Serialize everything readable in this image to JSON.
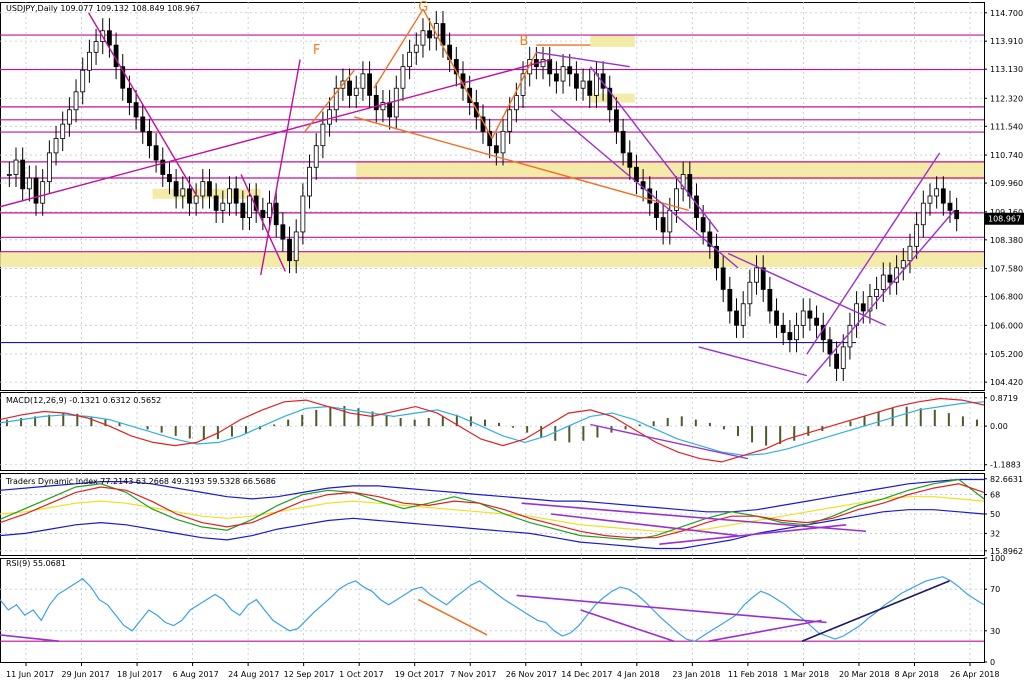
{
  "chart_data": {
    "type": "candlestick",
    "instrument_header": "USDJPY,Daily  109.077 109.132 108.849 108.967",
    "price_panel": {
      "ylim": [
        104.2,
        115.0
      ],
      "y_ticks": [
        "114.700",
        "113.910",
        "113.130",
        "112.320",
        "111.540",
        "110.740",
        "109.960",
        "109.160",
        "108.380",
        "107.580",
        "106.800",
        "106.000",
        "105.200",
        "104.420"
      ],
      "current_price_label": "108.967",
      "current_price": 108.967,
      "horizontal_levels_magenta": [
        114.08,
        113.12,
        112.08,
        111.72,
        111.38,
        110.55,
        110.1,
        109.13,
        108.45,
        108.05
      ],
      "horizontal_level_blue": 105.52,
      "highlight_zones": [
        {
          "x0": 0,
          "x1": 1,
          "y0": 107.62,
          "y1": 108.05
        },
        {
          "x0": 0.362,
          "x1": 1,
          "y0": 110.05,
          "y1": 110.58
        },
        {
          "x0": 0.155,
          "x1": 0.265,
          "y0": 109.52,
          "y1": 109.8
        },
        {
          "x0": 0.6,
          "x1": 0.645,
          "y0": 113.75,
          "y1": 114.08
        },
        {
          "x0": 0.6,
          "x1": 0.645,
          "y0": 112.2,
          "y1": 112.45
        }
      ],
      "pattern_labels": [
        "F",
        "G",
        "B"
      ],
      "candle_closes": [
        110.2,
        110.6,
        109.8,
        110.1,
        109.4,
        110.0,
        110.8,
        111.2,
        111.6,
        112.0,
        112.5,
        113.1,
        113.6,
        113.9,
        114.2,
        113.8,
        113.2,
        112.6,
        112.2,
        111.8,
        111.4,
        111.0,
        110.6,
        110.2,
        110.0,
        109.6,
        109.8,
        109.4,
        109.6,
        110.0,
        109.6,
        109.2,
        109.4,
        109.8,
        109.4,
        109.0,
        109.6,
        109.2,
        109.0,
        109.4,
        108.8,
        108.4,
        107.8,
        108.6,
        109.6,
        110.4,
        111.0,
        111.6,
        112.0,
        112.6,
        112.8,
        112.4,
        112.6,
        113.0,
        112.4,
        112.0,
        112.2,
        111.8,
        112.6,
        113.2,
        113.6,
        113.8,
        114.2,
        114.0,
        114.4,
        113.8,
        113.4,
        113.0,
        112.6,
        112.2,
        111.8,
        111.4,
        111.0,
        110.8,
        111.4,
        112.0,
        112.4,
        113.0,
        113.4,
        113.2,
        113.4,
        113.0,
        112.8,
        113.2,
        113.0,
        112.6,
        112.8,
        112.4,
        113.0,
        112.6,
        112.0,
        111.4,
        110.8,
        110.4,
        110.0,
        109.8,
        109.4,
        109.0,
        108.6,
        109.2,
        109.8,
        110.2,
        109.6,
        109.0,
        108.6,
        108.2,
        107.6,
        107.0,
        106.4,
        106.0,
        106.6,
        107.2,
        107.6,
        107.0,
        106.4,
        106.0,
        105.8,
        105.6,
        106.0,
        106.4,
        106.2,
        106.0,
        105.6,
        105.2,
        104.8,
        105.4,
        106.0,
        106.6,
        106.4,
        106.8,
        107.0,
        107.4,
        107.2,
        107.6,
        107.8,
        108.2,
        108.8,
        109.4,
        109.6,
        109.8,
        109.4,
        109.2,
        108.967
      ],
      "trend_lines": [
        {
          "color": "#c0109c",
          "x0": 0.0,
          "y0": 109.3,
          "x1": 0.56,
          "y1": 113.4
        },
        {
          "color": "#c0109c",
          "x0": 0.09,
          "y0": 114.7,
          "x1": 0.2,
          "y1": 109.6
        },
        {
          "color": "#c0109c",
          "x0": 0.245,
          "y0": 110.2,
          "x1": 0.29,
          "y1": 107.5
        },
        {
          "color": "#c0109c",
          "x0": 0.265,
          "y0": 107.4,
          "x1": 0.305,
          "y1": 113.4
        },
        {
          "color": "#f07020",
          "x0": 0.31,
          "y0": 111.4,
          "x1": 0.36,
          "y1": 113.1
        },
        {
          "color": "#f07020",
          "x0": 0.36,
          "y0": 111.8,
          "x1": 0.7,
          "y1": 109.2
        },
        {
          "color": "#f07020",
          "x0": 0.38,
          "y0": 112.6,
          "x1": 0.43,
          "y1": 114.8
        },
        {
          "color": "#f07020",
          "x0": 0.43,
          "y0": 114.8,
          "x1": 0.5,
          "y1": 111.2
        },
        {
          "color": "#f07020",
          "x0": 0.5,
          "y0": 111.2,
          "x1": 0.545,
          "y1": 113.6
        },
        {
          "color": "#f07020",
          "x0": 0.545,
          "y0": 113.8,
          "x1": 0.6,
          "y1": 113.8
        },
        {
          "color": "#9b30d0",
          "x0": 0.545,
          "y0": 113.6,
          "x1": 0.64,
          "y1": 113.2
        },
        {
          "color": "#9b30d0",
          "x0": 0.6,
          "y0": 113.2,
          "x1": 0.73,
          "y1": 108.6
        },
        {
          "color": "#9b30d0",
          "x0": 0.56,
          "y0": 112.0,
          "x1": 0.75,
          "y1": 107.6
        },
        {
          "color": "#9b30d0",
          "x0": 0.71,
          "y0": 105.4,
          "x1": 0.82,
          "y1": 104.6
        },
        {
          "color": "#9b30d0",
          "x0": 0.74,
          "y0": 108.0,
          "x1": 0.9,
          "y1": 106.0
        },
        {
          "color": "#9b30d0",
          "x0": 0.82,
          "y0": 104.4,
          "x1": 0.97,
          "y1": 109.2
        },
        {
          "color": "#9b30d0",
          "x0": 0.82,
          "y0": 105.2,
          "x1": 0.955,
          "y1": 110.8
        }
      ]
    },
    "macd_panel": {
      "label": "MACD(12,26,9) -0.1321 0.6312 0.5652",
      "y_ticks": [
        "0.8719",
        "0.00",
        "-1.1883"
      ],
      "ylim": [
        -1.35,
        1.05
      ],
      "histogram": [
        0.2,
        0.25,
        0.3,
        0.35,
        0.4,
        0.38,
        0.3,
        0.2,
        0.1,
        0.0,
        -0.1,
        -0.2,
        -0.3,
        -0.38,
        -0.42,
        -0.4,
        -0.32,
        -0.22,
        -0.1,
        0.05,
        0.2,
        0.35,
        0.5,
        0.6,
        0.62,
        0.55,
        0.45,
        0.35,
        0.25,
        0.2,
        0.25,
        0.3,
        0.35,
        0.3,
        0.2,
        0.1,
        -0.05,
        -0.2,
        -0.35,
        -0.45,
        -0.5,
        -0.45,
        -0.35,
        -0.2,
        -0.1,
        0.05,
        0.15,
        0.25,
        0.3,
        0.2,
        0.1,
        -0.1,
        -0.3,
        -0.5,
        -0.6,
        -0.55,
        -0.45,
        -0.3,
        -0.15,
        0.0,
        0.15,
        0.3,
        0.45,
        0.55,
        0.6,
        0.55,
        0.5,
        0.4,
        0.3,
        0.2
      ],
      "signal_line": [
        0.1,
        0.2,
        0.3,
        0.35,
        0.3,
        0.2,
        0.0,
        -0.2,
        -0.4,
        -0.55,
        -0.5,
        -0.3,
        0.0,
        0.3,
        0.55,
        0.6,
        0.5,
        0.4,
        0.3,
        0.4,
        0.5,
        0.3,
        0.0,
        -0.3,
        -0.5,
        -0.3,
        0.0,
        0.3,
        0.4,
        0.2,
        -0.1,
        -0.4,
        -0.6,
        -0.8,
        -0.9,
        -0.85,
        -0.7,
        -0.5,
        -0.3,
        -0.1,
        0.1,
        0.3,
        0.5,
        0.6,
        0.7,
        0.75
      ],
      "macd_line": [
        0.2,
        0.35,
        0.45,
        0.4,
        0.25,
        0.0,
        -0.3,
        -0.5,
        -0.6,
        -0.5,
        -0.2,
        0.2,
        0.5,
        0.75,
        0.8,
        0.6,
        0.4,
        0.3,
        0.45,
        0.6,
        0.4,
        0.0,
        -0.4,
        -0.6,
        -0.4,
        0.0,
        0.4,
        0.5,
        0.3,
        -0.1,
        -0.5,
        -0.8,
        -1.0,
        -1.1,
        -0.9,
        -0.7,
        -0.4,
        -0.2,
        0.0,
        0.2,
        0.4,
        0.6,
        0.75,
        0.85,
        0.8,
        0.65
      ]
    },
    "tdi_panel": {
      "label": "Traders Dynamic Index 77.2143 63.2668 49.3193 59.5328 66.5686",
      "y_ticks": [
        "82.6631",
        "68",
        "50",
        "32",
        "15.8962"
      ],
      "ylim": [
        12,
        88
      ],
      "upper_band": [
        72,
        74,
        76,
        78,
        80,
        80,
        78,
        74,
        70,
        66,
        64,
        66,
        70,
        74,
        76,
        76,
        74,
        72,
        70,
        68,
        66,
        64,
        62,
        62,
        60,
        58,
        56,
        54,
        52,
        52,
        54,
        58,
        62,
        66,
        70,
        74,
        78,
        80,
        82,
        82
      ],
      "yellow_line": [
        50,
        52,
        56,
        60,
        62,
        60,
        56,
        52,
        48,
        46,
        48,
        52,
        56,
        60,
        62,
        60,
        58,
        56,
        54,
        52,
        50,
        48,
        44,
        40,
        38,
        36,
        34,
        34,
        36,
        40,
        44,
        48,
        52,
        56,
        60,
        64,
        66,
        66,
        64,
        62
      ],
      "lower_band": [
        30,
        32,
        36,
        40,
        42,
        40,
        36,
        32,
        28,
        26,
        30,
        36,
        40,
        44,
        46,
        44,
        42,
        40,
        38,
        36,
        34,
        32,
        28,
        24,
        22,
        20,
        18,
        18,
        22,
        26,
        32,
        36,
        40,
        44,
        48,
        52,
        54,
        54,
        52,
        50
      ],
      "green_line": [
        45,
        55,
        65,
        75,
        78,
        70,
        55,
        45,
        38,
        35,
        45,
        58,
        68,
        72,
        70,
        62,
        55,
        60,
        66,
        60,
        50,
        42,
        36,
        30,
        28,
        26,
        30,
        38,
        46,
        52,
        48,
        42,
        40,
        48,
        58,
        64,
        72,
        78,
        82,
        64
      ],
      "red_line": [
        42,
        50,
        60,
        70,
        75,
        72,
        62,
        50,
        42,
        38,
        42,
        52,
        62,
        68,
        70,
        66,
        60,
        58,
        62,
        60,
        54,
        46,
        40,
        34,
        30,
        28,
        28,
        34,
        42,
        48,
        48,
        44,
        42,
        46,
        54,
        60,
        68,
        74,
        78,
        70
      ],
      "purple_trend_lines": [
        {
          "x0": 0.53,
          "y0": 60,
          "x1": 0.88,
          "y1": 34
        },
        {
          "x0": 0.67,
          "y0": 22,
          "x1": 0.86,
          "y1": 40
        },
        {
          "x0": 0.56,
          "y0": 50,
          "x1": 0.75,
          "y1": 30
        }
      ]
    },
    "rsi_panel": {
      "label": "RSI(9) 55.0681",
      "y_ticks": [
        "100",
        "70",
        "30",
        "0"
      ],
      "ylim": [
        0,
        100
      ],
      "values": [
        60,
        50,
        55,
        45,
        50,
        40,
        55,
        65,
        70,
        75,
        80,
        72,
        60,
        55,
        45,
        35,
        30,
        40,
        50,
        45,
        38,
        35,
        40,
        50,
        55,
        60,
        65,
        60,
        50,
        45,
        55,
        60,
        50,
        40,
        35,
        30,
        32,
        40,
        48,
        55,
        62,
        70,
        75,
        78,
        72,
        68,
        60,
        55,
        60,
        65,
        70,
        72,
        65,
        60,
        55,
        62,
        68,
        74,
        78,
        72,
        66,
        60,
        55,
        50,
        45,
        40,
        38,
        30,
        25,
        28,
        35,
        45,
        55,
        62,
        68,
        72,
        70,
        65,
        58,
        50,
        42,
        35,
        28,
        22,
        20,
        25,
        30,
        35,
        40,
        45,
        55,
        62,
        68,
        65,
        60,
        55,
        48,
        42,
        35,
        28,
        25,
        22,
        25,
        30,
        35,
        42,
        48,
        55,
        60,
        66,
        70,
        74,
        78,
        80,
        82,
        78,
        72,
        65,
        60,
        55
      ],
      "orange_trend_line": {
        "x0": 0.425,
        "y0": 60,
        "x1": 0.495,
        "y1": 26
      },
      "purple_trend_lines": [
        {
          "x0": 0.525,
          "y0": 64,
          "x1": 0.84,
          "y1": 38
        },
        {
          "x0": 0.59,
          "y0": 50,
          "x1": 0.685,
          "y1": 20
        },
        {
          "x0": 0.72,
          "y0": 20,
          "x1": 0.835,
          "y1": 40
        },
        {
          "x0": 0.0,
          "y0": 26,
          "x1": 0.06,
          "y1": 20
        }
      ],
      "navy_trend_line": {
        "x0": 0.815,
        "y0": 20,
        "x1": 0.965,
        "y1": 78
      },
      "level_20_line": 20
    },
    "x_ticks": [
      "11 Jun 2017",
      "29 Jun 2017",
      "18 Jul 2017",
      "6 Aug 2017",
      "24 Aug 2017",
      "12 Sep 2017",
      "1 Oct 2017",
      "19 Oct 2017",
      "7 Nov 2017",
      "26 Nov 2017",
      "14 Dec 2017",
      "4 Jan 2018",
      "23 Jan 2018",
      "11 Feb 2018",
      "1 Mar 2018",
      "20 Mar 2018",
      "8 Apr 2018",
      "26 Apr 2018"
    ],
    "grid": true,
    "colors": {
      "bull_candle": "#000000",
      "bear_candle": "#000000",
      "magenta_level": "#c0109c",
      "blue_level": "#1a1aa0",
      "zone_fill": "#f3e89a",
      "grid": "#b8c8dc",
      "macd_hist": "#4a5a2a",
      "macd_line": "#e02020",
      "macd_signal": "#30b0e0",
      "tdi_band": "#1a1ad0",
      "tdi_yellow": "#f0e020",
      "tdi_green": "#20a020",
      "tdi_red": "#e02020",
      "rsi_line": "#3aa0f0",
      "pattern_label": "#f08020"
    }
  }
}
